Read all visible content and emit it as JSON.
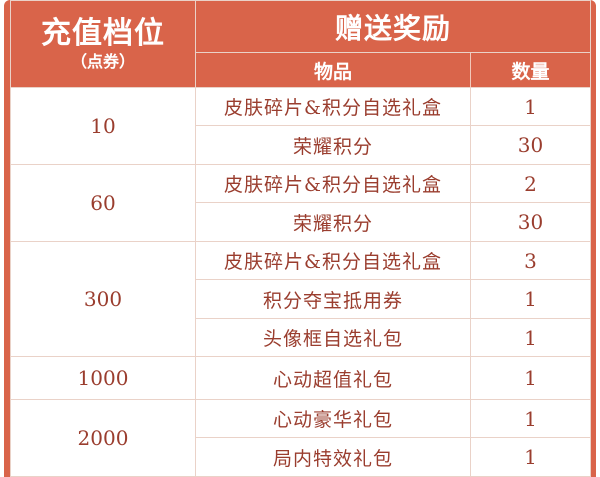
{
  "header": {
    "tier_title": "充值档位",
    "tier_unit": "（点券）",
    "reward_title": "赠送奖励",
    "col_item": "物品",
    "col_qty": "数量"
  },
  "tiers": [
    {
      "amount": "10",
      "rewards": [
        {
          "item": "皮肤碎片&积分自选礼盒",
          "qty": "1"
        },
        {
          "item": "荣耀积分",
          "qty": "30"
        }
      ]
    },
    {
      "amount": "60",
      "rewards": [
        {
          "item": "皮肤碎片&积分自选礼盒",
          "qty": "2"
        },
        {
          "item": "荣耀积分",
          "qty": "30"
        }
      ]
    },
    {
      "amount": "300",
      "rewards": [
        {
          "item": "皮肤碎片&积分自选礼盒",
          "qty": "3"
        },
        {
          "item": "积分夺宝抵用券",
          "qty": "1"
        },
        {
          "item": "头像框自选礼包",
          "qty": "1"
        }
      ]
    },
    {
      "amount": "1000",
      "rewards": [
        {
          "item": "心动超值礼包",
          "qty": "1"
        }
      ]
    },
    {
      "amount": "2000",
      "rewards": [
        {
          "item": "心动豪华礼包",
          "qty": "1"
        },
        {
          "item": "局内特效礼包",
          "qty": "1"
        }
      ]
    }
  ],
  "colors": {
    "header_bg": "#d9644a",
    "text": "#9a3d2e",
    "grid": "#ead2c8"
  }
}
